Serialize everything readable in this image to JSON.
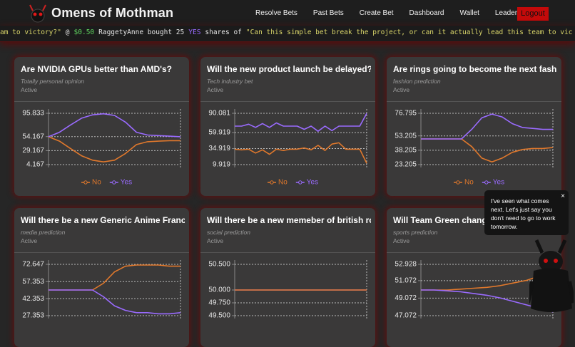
{
  "header": {
    "logo": "Omens of Mothman",
    "nav": [
      "Resolve Bets",
      "Past Bets",
      "Create Bet",
      "Dashboard",
      "Wallet",
      "Leaderboard"
    ],
    "logout": "Logout"
  },
  "ticker": {
    "items": [
      {
        "text": "am to victory?\"",
        "color": "#d9d56a"
      },
      {
        "text": "@",
        "color": "#e6e6e6"
      },
      {
        "text": "$0.50",
        "color": "#5fd35f"
      },
      {
        "text": "RaggetyAnne bought 25",
        "color": "#e6e6e6"
      },
      {
        "text": "YES",
        "color": "#9a6bff"
      },
      {
        "text": "shares of",
        "color": "#e6e6e6"
      },
      {
        "text": "\"Can this simple bet break the project, or can it actually lead this team to vic",
        "color": "#d9d56a"
      }
    ]
  },
  "cards": [
    {
      "title": "Are NVIDIA GPUs better than AMD's?",
      "subtitle": "Totally personal opinion",
      "status": "Active",
      "chart": {
        "ylim": [
          4.167,
          95.833
        ],
        "yticks": [
          95.833,
          54.167,
          29.167,
          4.167
        ],
        "legend": true,
        "series": [
          {
            "name": "No",
            "color": "#e0782c",
            "values": [
              54,
              46,
              33,
              20,
              12,
              9,
              12,
              24,
              40,
              45,
              46,
              47,
              47
            ]
          },
          {
            "name": "Yes",
            "color": "#9a6bff",
            "values": [
              54,
              62,
              75,
              87,
              93,
              95,
              92,
              80,
              62,
              57,
              56,
              55,
              54
            ]
          }
        ]
      }
    },
    {
      "title": "Will the new product launch be delayed?",
      "subtitle": "Tech industry bet",
      "status": "Active",
      "chart": {
        "ylim": [
          9.919,
          90.081
        ],
        "yticks": [
          90.081,
          59.919,
          34.919,
          9.919
        ],
        "legend": true,
        "series": [
          {
            "name": "No",
            "color": "#e0782c",
            "values": [
              34,
              33,
              34,
              28,
              33,
              26,
              34,
              32,
              34,
              34,
              36,
              33,
              40,
              32,
              42,
              44,
              34,
              34,
              34,
              12
            ]
          },
          {
            "name": "Yes",
            "color": "#9a6bff",
            "values": [
              70,
              70,
              73,
              68,
              74,
              68,
              75,
              70,
              70,
              70,
              65,
              70,
              62,
              70,
              63,
              70,
              70,
              70,
              70,
              90
            ]
          }
        ]
      }
    },
    {
      "title": "Are rings going to become the next fashio…",
      "subtitle": "fashion prediction",
      "status": "Active",
      "chart": {
        "ylim": [
          23.205,
          76.795
        ],
        "yticks": [
          76.795,
          53.205,
          38.205,
          23.205
        ],
        "legend": true,
        "series": [
          {
            "name": "No",
            "color": "#e0782c",
            "values": [
              50,
              50,
              50,
              50,
              50,
              42,
              30,
              26,
              30,
              36,
              39,
              40,
              40,
              41
            ]
          },
          {
            "name": "Yes",
            "color": "#9a6bff",
            "values": [
              50,
              50,
              50,
              50,
              50,
              60,
              72,
              76,
              73,
              66,
              62,
              61,
              60,
              60
            ]
          }
        ]
      }
    },
    {
      "title": "Will there be a new Generic Anime Franch…",
      "subtitle": "media prediction",
      "status": "Active",
      "chart": {
        "ylim": [
          27.353,
          72.647
        ],
        "yticks": [
          72.647,
          57.353,
          42.353,
          27.353
        ],
        "series": [
          {
            "color": "#e0782c",
            "values": [
              50,
              50,
              50,
              50,
              50,
              56,
              66,
              71,
              72,
              72,
              72,
              71,
              71
            ]
          },
          {
            "color": "#9a6bff",
            "values": [
              50,
              50,
              50,
              50,
              50,
              44,
              36,
              32,
              30,
              30,
              29,
              29,
              30
            ]
          }
        ]
      }
    },
    {
      "title": "Will there be a new memeber of british ro…",
      "subtitle": "social prediction",
      "status": "Active",
      "chart": {
        "ylim": [
          49.5,
          50.5
        ],
        "yticks": [
          {
            "value": 50.5,
            "label": "50.500"
          },
          {
            "value": 50,
            "label": "50.000"
          },
          {
            "value": 49.75,
            "label": "49.750"
          },
          {
            "value": 49.5,
            "label": "49.500"
          }
        ],
        "series": [
          {
            "color": "#9a6bff",
            "values": [
              50,
              50,
              50,
              50,
              50,
              50,
              50,
              50
            ]
          },
          {
            "color": "#e0782c",
            "values": [
              50,
              50,
              50,
              50,
              50,
              50,
              50,
              50
            ]
          }
        ]
      }
    },
    {
      "title": "Will Team Green change",
      "subtitle": "sports prediction",
      "status": "Active",
      "chart": {
        "ylim": [
          47.072,
          52.928
        ],
        "yticks": [
          52.928,
          51.072,
          49.072,
          47.072
        ],
        "series": [
          {
            "color": "#e0782c",
            "values": [
              50,
              50,
              50,
              50.1,
              50.2,
              50.3,
              50.5,
              50.8,
              51.1,
              51.6,
              52.2
            ]
          },
          {
            "color": "#9a6bff",
            "values": [
              50,
              50,
              49.9,
              49.8,
              49.6,
              49.4,
              49.1,
              48.7,
              48.3,
              47.9,
              47.5
            ]
          }
        ]
      }
    }
  ],
  "popup": {
    "text": "I've seen what comes next. Let's just say you don't need to go to work tomorrow.",
    "close": "×"
  }
}
